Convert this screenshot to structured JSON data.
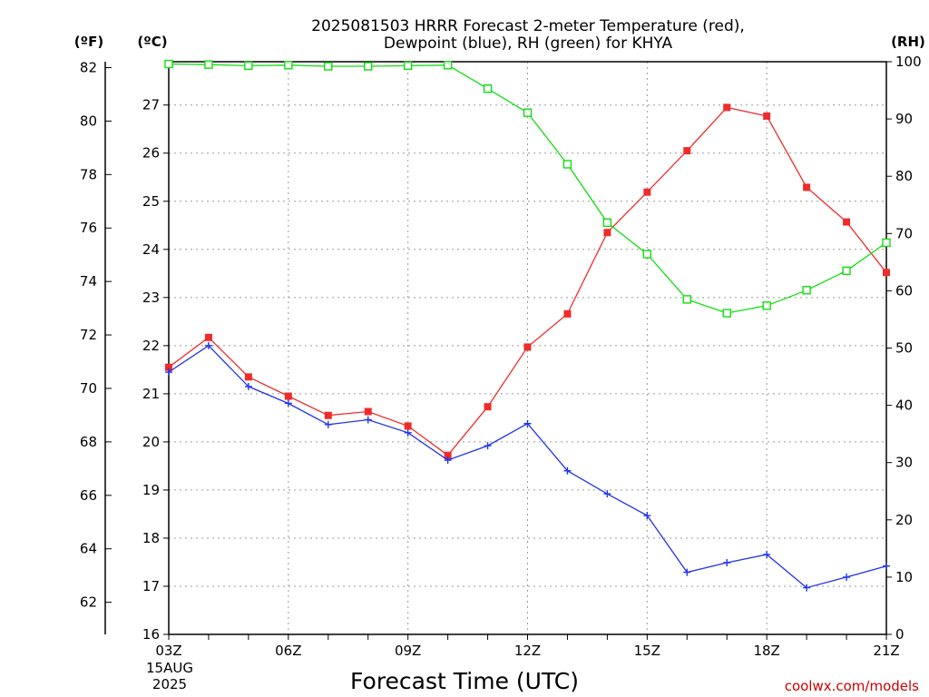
{
  "title_line1": "2025081503 HRRR Forecast 2-meter Temperature (red),",
  "title_line2": "Dewpoint (blue), RH (green) for KHYA",
  "axis_units": {
    "fahrenheit": "(ºF)",
    "celsius": "(ºC)",
    "rh": "(RH)"
  },
  "xlabel": "Forecast Time (UTC)",
  "date_label_line1": "15AUG",
  "date_label_line2": "2025",
  "credit": "coolwx.com/models",
  "chart_data": {
    "type": "line",
    "x": [
      3,
      4,
      5,
      6,
      7,
      8,
      9,
      10,
      11,
      12,
      13,
      14,
      15,
      16,
      17,
      18,
      19,
      20,
      21
    ],
    "x_ticks": [
      {
        "x": 3,
        "label": "03Z"
      },
      {
        "x": 6,
        "label": "06Z"
      },
      {
        "x": 9,
        "label": "09Z"
      },
      {
        "x": 12,
        "label": "12Z"
      },
      {
        "x": 15,
        "label": "15Z"
      },
      {
        "x": 18,
        "label": "18Z"
      },
      {
        "x": 21,
        "label": "21Z"
      }
    ],
    "xlim": [
      3,
      21
    ],
    "celsius_ylim": [
      16,
      27.9
    ],
    "celsius_ticks": [
      "16",
      "17",
      "18",
      "19",
      "20",
      "21",
      "22",
      "23",
      "24",
      "25",
      "26",
      "27"
    ],
    "fahrenheit_ticks": [
      "62",
      "64",
      "66",
      "68",
      "70",
      "72",
      "74",
      "76",
      "78",
      "80",
      "82"
    ],
    "rh_ylim": [
      0,
      100
    ],
    "rh_ticks": [
      "0",
      "10",
      "20",
      "30",
      "40",
      "50",
      "60",
      "70",
      "80",
      "90",
      "100"
    ],
    "grid": true,
    "series": [
      {
        "name": "Temperature",
        "axis": "celsius",
        "color": "#ee2c2c",
        "marker": "filled-square",
        "values": [
          21.55,
          22.17,
          21.35,
          20.95,
          20.55,
          20.63,
          20.33,
          19.72,
          20.73,
          21.97,
          22.66,
          24.35,
          25.19,
          26.05,
          26.95,
          26.77,
          25.29,
          24.57,
          23.52
        ]
      },
      {
        "name": "Dewpoint",
        "axis": "celsius",
        "color": "#2233ee",
        "marker": "plus",
        "values": [
          21.45,
          22.0,
          21.15,
          20.8,
          20.36,
          20.46,
          20.19,
          19.62,
          19.92,
          20.38,
          19.4,
          18.92,
          18.47,
          17.29,
          17.49,
          17.66,
          16.97,
          17.19,
          17.42
        ]
      },
      {
        "name": "RH",
        "axis": "rh",
        "color": "#11dd11",
        "marker": "open-square",
        "values": [
          99.6,
          99.5,
          99.3,
          99.4,
          99.2,
          99.2,
          99.3,
          99.4,
          95.3,
          91.1,
          82.1,
          71.9,
          66.4,
          58.5,
          56.1,
          57.4,
          60.1,
          63.5,
          68.4
        ]
      }
    ]
  }
}
